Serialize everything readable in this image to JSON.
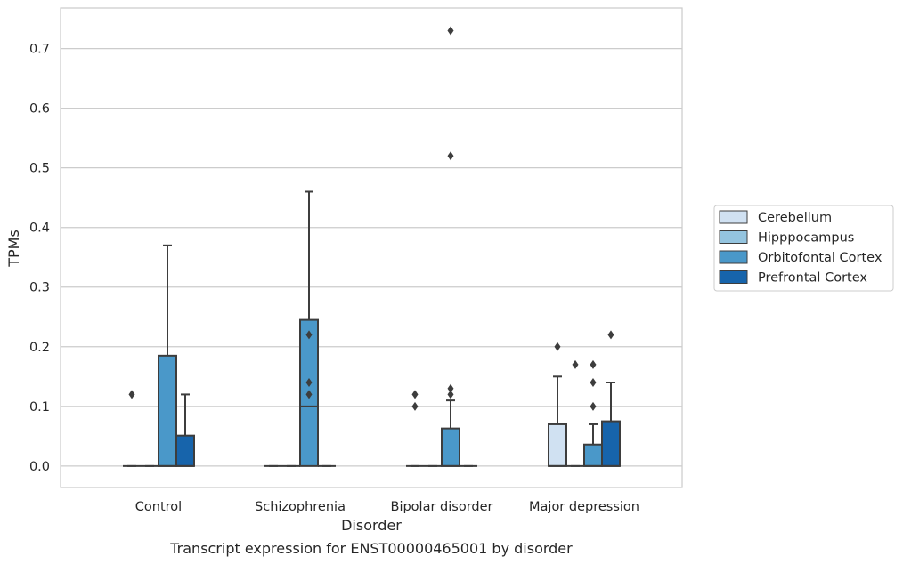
{
  "chart_data": {
    "type": "box",
    "caption": "Transcript expression for ENST00000465001 by disorder",
    "xlabel": "Disorder",
    "ylabel": "TPMs",
    "ylim": [
      -0.036,
      0.768
    ],
    "yticks": [
      "0.0",
      "0.1",
      "0.2",
      "0.3",
      "0.4",
      "0.5",
      "0.6",
      "0.7"
    ],
    "categories": [
      "Control",
      "Schizophrenia",
      "Bipolar disorder",
      "Major depression"
    ],
    "grid": "horizontal",
    "legend_position": "right",
    "series": [
      {
        "name": "Cerebellum",
        "color": "#d0e1f2",
        "boxes": [
          {
            "q1": 0,
            "median": 0,
            "q3": 0,
            "whisker_low": 0,
            "whisker_high": 0,
            "outliers": [
              0.12
            ]
          },
          {
            "q1": 0,
            "median": 0,
            "q3": 0,
            "whisker_low": 0,
            "whisker_high": 0,
            "outliers": []
          },
          {
            "q1": 0,
            "median": 0,
            "q3": 0,
            "whisker_low": 0,
            "whisker_high": 0,
            "outliers": [
              0.1,
              0.12
            ]
          },
          {
            "q1": 0,
            "median": 0,
            "q3": 0.07,
            "whisker_low": 0,
            "whisker_high": 0.15,
            "outliers": [
              0.2
            ]
          }
        ]
      },
      {
        "name": "Hipppocampus",
        "color": "#94c4df",
        "boxes": [
          {
            "q1": 0,
            "median": 0,
            "q3": 0,
            "whisker_low": 0,
            "whisker_high": 0,
            "outliers": []
          },
          {
            "q1": 0,
            "median": 0,
            "q3": 0,
            "whisker_low": 0,
            "whisker_high": 0,
            "outliers": []
          },
          {
            "q1": 0,
            "median": 0,
            "q3": 0,
            "whisker_low": 0,
            "whisker_high": 0,
            "outliers": []
          },
          {
            "q1": 0,
            "median": 0,
            "q3": 0,
            "whisker_low": 0,
            "whisker_high": 0,
            "outliers": [
              0.17
            ]
          }
        ]
      },
      {
        "name": "Orbitofontal Cortex",
        "color": "#4a98c9",
        "boxes": [
          {
            "q1": 0,
            "median": 0,
            "q3": 0.185,
            "whisker_low": 0,
            "whisker_high": 0.37,
            "outliers": []
          },
          {
            "q1": 0,
            "median": 0.1,
            "q3": 0.245,
            "whisker_low": 0,
            "whisker_high": 0.46,
            "outliers": [
              0.12,
              0.14,
              0.22
            ]
          },
          {
            "q1": 0,
            "median": 0,
            "q3": 0.063,
            "whisker_low": 0,
            "whisker_high": 0.11,
            "outliers": [
              0.12,
              0.13,
              0.52,
              0.73
            ]
          },
          {
            "q1": 0,
            "median": 0,
            "q3": 0.036,
            "whisker_low": 0,
            "whisker_high": 0.07,
            "outliers": [
              0.1,
              0.14,
              0.17
            ]
          }
        ]
      },
      {
        "name": "Prefrontal Cortex",
        "color": "#1764ab",
        "boxes": [
          {
            "q1": 0,
            "median": 0,
            "q3": 0.051,
            "whisker_low": 0,
            "whisker_high": 0.12,
            "outliers": []
          },
          {
            "q1": 0,
            "median": 0,
            "q3": 0,
            "whisker_low": 0,
            "whisker_high": 0,
            "outliers": []
          },
          {
            "q1": 0,
            "median": 0,
            "q3": 0,
            "whisker_low": 0,
            "whisker_high": 0,
            "outliers": []
          },
          {
            "q1": 0,
            "median": 0,
            "q3": 0.075,
            "whisker_low": 0,
            "whisker_high": 0.14,
            "outliers": [
              0.22
            ]
          }
        ]
      }
    ]
  }
}
